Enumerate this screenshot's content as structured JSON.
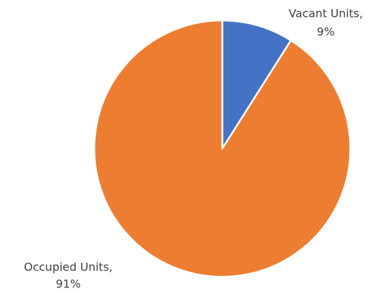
{
  "chart_data": {
    "type": "pie",
    "categories": [
      "Vacant Units,",
      "Occupied Units,"
    ],
    "values": [
      9,
      91
    ],
    "value_labels": [
      "9%",
      "91%"
    ],
    "colors": [
      "#4472c4",
      "#ed7d31"
    ]
  }
}
